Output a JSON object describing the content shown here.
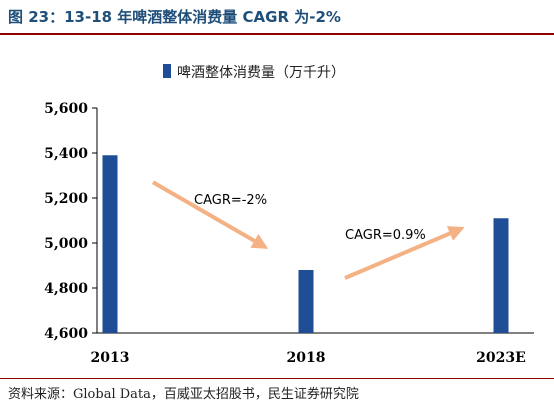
{
  "figure": {
    "title": "图 23：13-18 年啤酒整体消费量 CAGR 为-2%",
    "source": "资料来源：Global Data，百威亚太招股书，民生证券研究院"
  },
  "chart_data": {
    "type": "bar",
    "title": "",
    "legend": {
      "label": "啤酒整体消费量（万千升）",
      "placement": "top-center"
    },
    "categories": [
      "2013",
      "2018",
      "2023E"
    ],
    "values": [
      5390,
      4880,
      5110
    ],
    "series": [
      {
        "name": "啤酒整体消费量（万千升）",
        "values": [
          5390,
          4880,
          5110
        ],
        "color": "#1f4e97"
      }
    ],
    "yticks": [
      "4,600",
      "4,800",
      "5,000",
      "5,200",
      "5,400",
      "5,600"
    ],
    "ylim": [
      4600,
      5600
    ],
    "xlabel": "",
    "ylabel": "",
    "grid": false,
    "annotations": [
      {
        "text": "CAGR=-2%",
        "arrow_from": [
          "2013",
          5270
        ],
        "arrow_to": [
          "2018",
          4990
        ]
      },
      {
        "text": "CAGR=0.9%",
        "arrow_from": [
          "2018",
          4880
        ],
        "arrow_to": [
          "2023E",
          5060
        ]
      }
    ],
    "colors": {
      "bar": "#1f4e97",
      "arrow": "#f4b183"
    }
  }
}
